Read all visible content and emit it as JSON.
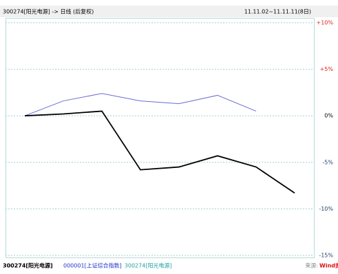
{
  "chart_data": {
    "type": "line",
    "title": "300274[阳光电源] -> 日线 (后复权)",
    "date_range": "11.11.02~11.11.11(8日)",
    "footer_label": "300274[阳光电源]",
    "source_label": "来源:",
    "source_name": "Wind资讯",
    "categories": [
      null,
      null,
      null,
      null,
      null,
      null,
      null,
      null
    ],
    "series": [
      {
        "name": "000001[上证综合指数]",
        "color": "#6a6ad8",
        "label_color": "#2233cc",
        "values": [
          0,
          1.6,
          2.4,
          1.6,
          1.3,
          2.2,
          0.5,
          null
        ]
      },
      {
        "name": "300274[阳光电源]",
        "color": "#000000",
        "label_color": "#22a0a0",
        "values": [
          0,
          0.2,
          0.5,
          -5.8,
          -5.5,
          -4.3,
          -5.5,
          -8.3
        ]
      }
    ],
    "ylim": [
      -15,
      10
    ],
    "yticks": [
      {
        "value": 10,
        "label": "+10%"
      },
      {
        "value": 5,
        "label": "+5%"
      },
      {
        "value": 0,
        "label": "0%"
      },
      {
        "value": -5,
        "label": "-5%"
      },
      {
        "value": -10,
        "label": "-10%"
      },
      {
        "value": -15,
        "label": "-15%"
      }
    ],
    "grid": true
  }
}
